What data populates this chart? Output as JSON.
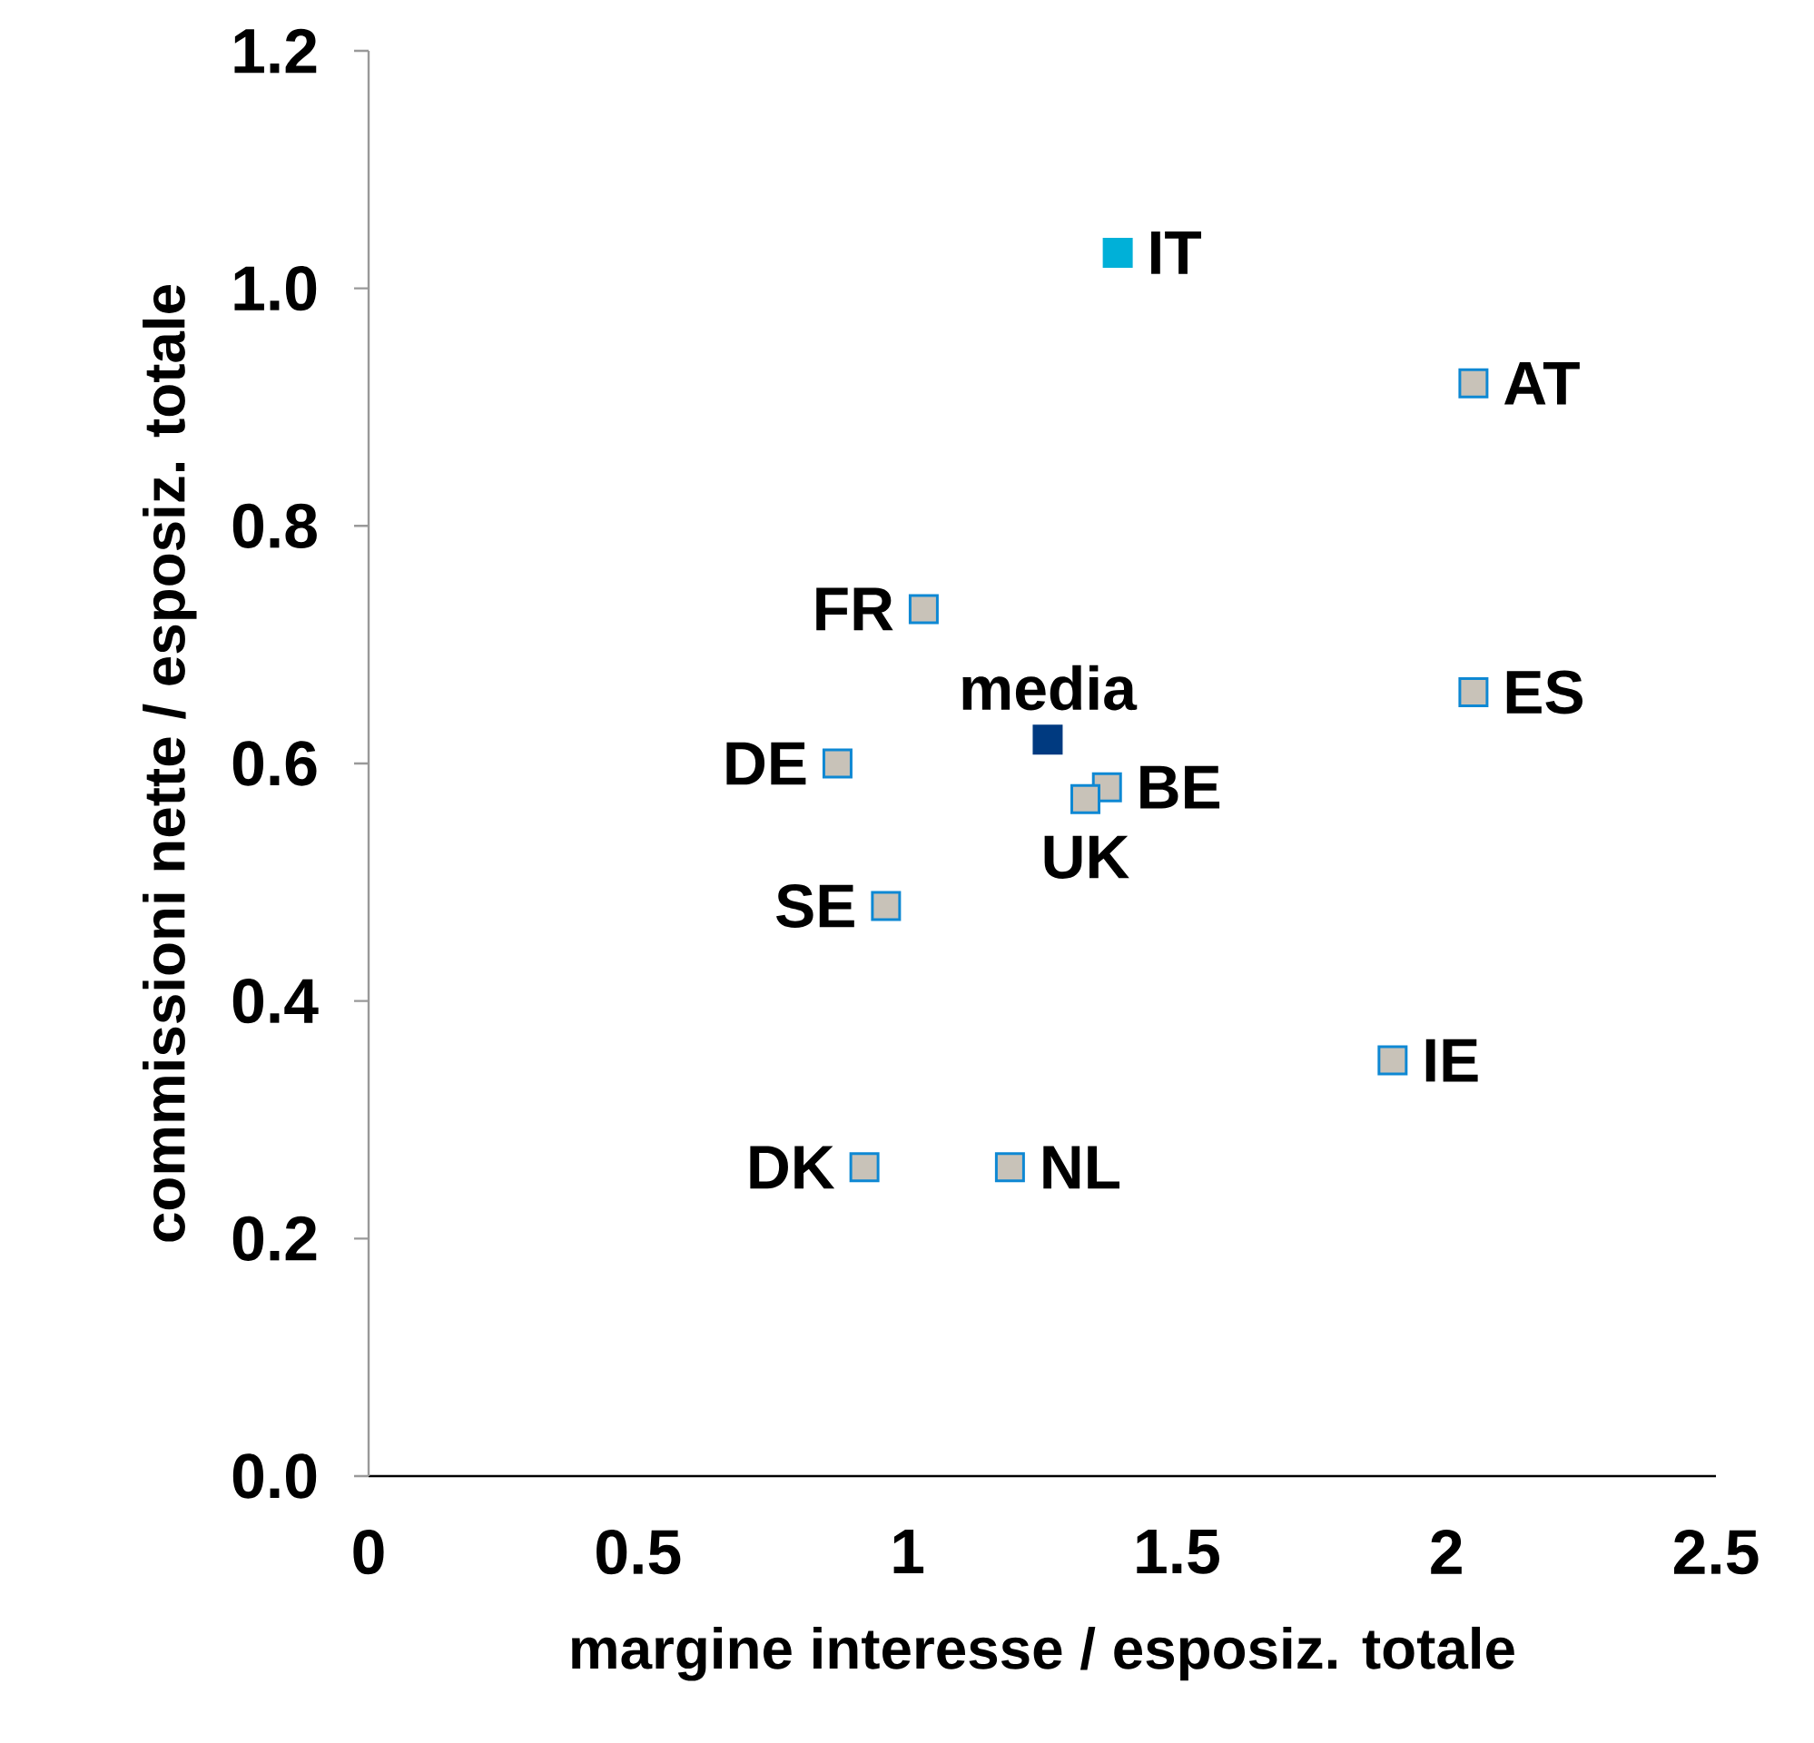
{
  "chart_data": {
    "type": "scatter",
    "xlabel": "margine interesse / esposiz. totale",
    "ylabel": "commissioni nette / esposiz. totale",
    "xlim": [
      0,
      2.5
    ],
    "xticks": [
      0,
      0.5,
      1,
      1.5,
      2,
      2.5
    ],
    "ylim": [
      0,
      1.2
    ],
    "yticks": [
      {
        "value": 0,
        "label": "0.0"
      },
      {
        "value": 0.2,
        "label": "0.2"
      },
      {
        "value": 0.4,
        "label": "0.4"
      },
      {
        "value": 0.6,
        "label": "0.6"
      },
      {
        "value": 0.8,
        "label": "0.8"
      },
      {
        "value": 1,
        "label": "1.0"
      },
      {
        "value": 1.2,
        "label": "1.2"
      }
    ],
    "grid": false,
    "marker": "square",
    "series": [
      {
        "color": "#c8c2b8",
        "x": [
          2.05,
          1.03,
          0.87,
          1.37,
          1.33,
          2.05,
          0.96,
          1.9,
          0.92,
          1.19
        ],
        "values": [
          0.92,
          0.73,
          0.6,
          0.58,
          0.57,
          0.66,
          0.48,
          0.35,
          0.26,
          0.26
        ]
      },
      {
        "color": "#00b0d8",
        "x": [
          1.39
        ],
        "values": [
          1.03
        ]
      },
      {
        "color": "#003a80",
        "x": [
          1.26
        ],
        "values": [
          0.62
        ]
      }
    ],
    "annotations": [
      {
        "text": "IT",
        "x": 1.39,
        "y": 1.03
      },
      {
        "text": "AT",
        "x": 2.05,
        "y": 0.92
      },
      {
        "text": "FR",
        "x": 1.03,
        "y": 0.73
      },
      {
        "text": "media",
        "x": 1.26,
        "y": 0.62
      },
      {
        "text": "DE",
        "x": 0.87,
        "y": 0.6
      },
      {
        "text": "BE",
        "x": 1.37,
        "y": 0.58
      },
      {
        "text": "UK",
        "x": 1.33,
        "y": 0.57
      },
      {
        "text": "ES",
        "x": 2.05,
        "y": 0.66
      },
      {
        "text": "SE",
        "x": 0.96,
        "y": 0.48
      },
      {
        "text": "IE",
        "x": 1.9,
        "y": 0.35
      },
      {
        "text": "DK",
        "x": 0.92,
        "y": 0.26
      },
      {
        "text": "NL",
        "x": 1.19,
        "y": 0.26
      }
    ]
  }
}
